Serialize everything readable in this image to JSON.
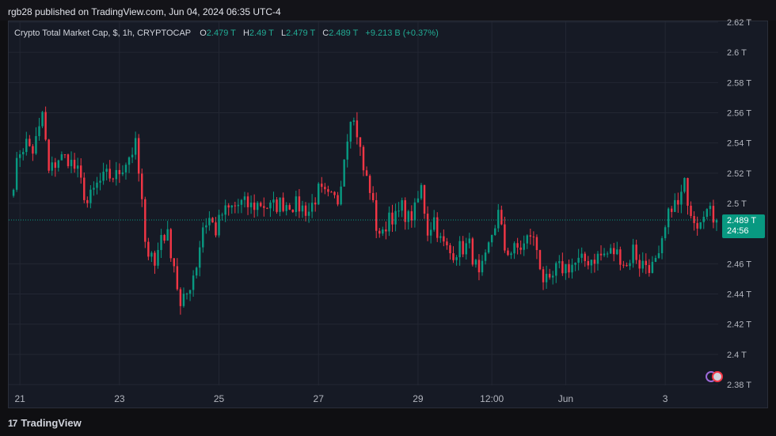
{
  "header": {
    "published_by": "rgb28 published on TradingView.com, Jun 04, 2024 06:35 UTC-4"
  },
  "legend": {
    "symbol": "Crypto Total Market Cap, $, 1h, CRYPTOCAP",
    "open_label": "O",
    "open_value": "2.479 T",
    "high_label": "H",
    "high_value": "2.49 T",
    "low_label": "L",
    "low_value": "2.479 T",
    "close_label": "C",
    "close_value": "2.489 T",
    "change": "+9.213 B (+0.37%)"
  },
  "last_price": {
    "value": "2.489 T",
    "countdown": "24:56"
  },
  "footer": {
    "brand": "TradingView"
  },
  "colors": {
    "up": "#089981",
    "down": "#f23645",
    "bg": "#161a25",
    "grid": "#232733",
    "text": "#b2b5be"
  },
  "chart_data": {
    "type": "candlestick",
    "title": "Crypto Total Market Cap, $, 1h, CRYPTOCAP",
    "xlabel": "",
    "ylabel": "",
    "y_unit": "T",
    "ylim": [
      2.38,
      2.62
    ],
    "y_ticks": [
      2.62,
      2.6,
      2.58,
      2.56,
      2.54,
      2.52,
      2.5,
      2.46,
      2.44,
      2.42,
      2.4,
      2.38
    ],
    "y_tick_labels": [
      "2.62 T",
      "2.6 T",
      "2.58 T",
      "2.56 T",
      "2.54 T",
      "2.52 T",
      "2.5 T",
      "2.46 T",
      "2.44 T",
      "2.42 T",
      "2.4 T",
      "2.38 T"
    ],
    "x_ticks": [
      {
        "bar": 3,
        "label": "21"
      },
      {
        "bar": 34,
        "label": "23"
      },
      {
        "bar": 65,
        "label": "25"
      },
      {
        "bar": 96,
        "label": "27"
      },
      {
        "bar": 127,
        "label": "29"
      },
      {
        "bar": 150,
        "label": "12:00"
      },
      {
        "bar": 173,
        "label": "Jun"
      },
      {
        "bar": 204,
        "label": "3"
      }
    ],
    "last_close": 2.489,
    "anchors": [
      [
        0,
        2.505
      ],
      [
        3,
        2.535
      ],
      [
        5,
        2.54
      ],
      [
        7,
        2.535
      ],
      [
        9,
        2.548
      ],
      [
        10,
        2.56
      ],
      [
        12,
        2.52
      ],
      [
        15,
        2.53
      ],
      [
        18,
        2.53
      ],
      [
        21,
        2.52
      ],
      [
        24,
        2.5
      ],
      [
        27,
        2.512
      ],
      [
        30,
        2.518
      ],
      [
        33,
        2.518
      ],
      [
        36,
        2.528
      ],
      [
        39,
        2.538
      ],
      [
        41,
        2.5
      ],
      [
        42,
        2.47
      ],
      [
        44,
        2.47
      ],
      [
        45,
        2.458
      ],
      [
        47,
        2.48
      ],
      [
        49,
        2.478
      ],
      [
        51,
        2.46
      ],
      [
        53,
        2.43
      ],
      [
        55,
        2.44
      ],
      [
        58,
        2.46
      ],
      [
        60,
        2.485
      ],
      [
        62,
        2.49
      ],
      [
        64,
        2.482
      ],
      [
        66,
        2.493
      ],
      [
        69,
        2.497
      ],
      [
        72,
        2.5
      ],
      [
        75,
        2.498
      ],
      [
        78,
        2.5
      ],
      [
        81,
        2.497
      ],
      [
        84,
        2.5
      ],
      [
        87,
        2.5
      ],
      [
        90,
        2.498
      ],
      [
        93,
        2.495
      ],
      [
        96,
        2.508
      ],
      [
        99,
        2.503
      ],
      [
        102,
        2.502
      ],
      [
        104,
        2.532
      ],
      [
        106,
        2.56
      ],
      [
        108,
        2.547
      ],
      [
        110,
        2.522
      ],
      [
        112,
        2.51
      ],
      [
        114,
        2.485
      ],
      [
        116,
        2.478
      ],
      [
        118,
        2.494
      ],
      [
        120,
        2.49
      ],
      [
        122,
        2.497
      ],
      [
        124,
        2.49
      ],
      [
        126,
        2.495
      ],
      [
        128,
        2.51
      ],
      [
        130,
        2.482
      ],
      [
        132,
        2.49
      ],
      [
        134,
        2.475
      ],
      [
        137,
        2.467
      ],
      [
        140,
        2.47
      ],
      [
        143,
        2.472
      ],
      [
        145,
        2.458
      ],
      [
        146,
        2.45
      ],
      [
        148,
        2.462
      ],
      [
        150,
        2.48
      ],
      [
        152,
        2.493
      ],
      [
        154,
        2.47
      ],
      [
        156,
        2.468
      ],
      [
        158,
        2.47
      ],
      [
        160,
        2.472
      ],
      [
        162,
        2.48
      ],
      [
        164,
        2.47
      ],
      [
        166,
        2.45
      ],
      [
        168,
        2.445
      ],
      [
        170,
        2.456
      ],
      [
        173,
        2.458
      ],
      [
        176,
        2.46
      ],
      [
        179,
        2.462
      ],
      [
        182,
        2.464
      ],
      [
        185,
        2.466
      ],
      [
        188,
        2.468
      ],
      [
        190,
        2.465
      ],
      [
        192,
        2.458
      ],
      [
        194,
        2.47
      ],
      [
        196,
        2.46
      ],
      [
        198,
        2.46
      ],
      [
        200,
        2.458
      ],
      [
        202,
        2.462
      ],
      [
        204,
        2.482
      ],
      [
        206,
        2.5
      ],
      [
        208,
        2.498
      ],
      [
        210,
        2.512
      ],
      [
        212,
        2.496
      ],
      [
        214,
        2.488
      ],
      [
        216,
        2.497
      ],
      [
        218,
        2.493
      ],
      [
        220,
        2.489
      ]
    ]
  }
}
